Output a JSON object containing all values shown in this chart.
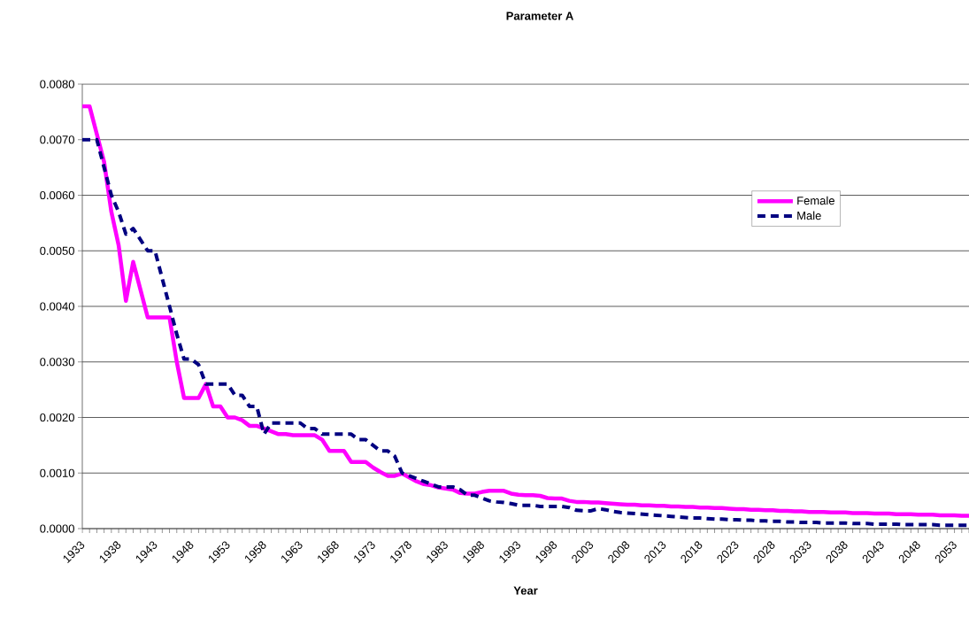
{
  "chart_data": {
    "type": "line",
    "title": "Parameter A",
    "xlabel": "Year",
    "categories": [
      "1933",
      null,
      null,
      null,
      null,
      "1938",
      null,
      null,
      null,
      null,
      "1943",
      null,
      null,
      null,
      null,
      "1948",
      null,
      null,
      null,
      null,
      "1953",
      null,
      null,
      null,
      null,
      "1958",
      null,
      null,
      null,
      null,
      "1963",
      null,
      null,
      null,
      null,
      "1968",
      null,
      null,
      null,
      null,
      "1973",
      null,
      null,
      null,
      null,
      "1978",
      null,
      null,
      null,
      null,
      "1983",
      null,
      null,
      null,
      null,
      "1988",
      null,
      null,
      null,
      null,
      "1993",
      null,
      null,
      null,
      null,
      "1998",
      null,
      null,
      null,
      null,
      "2003",
      null,
      null,
      null,
      null,
      "2008",
      null,
      null,
      null,
      null,
      "2013",
      null,
      null,
      null,
      null,
      "2018",
      null,
      null,
      null,
      null,
      "2023",
      null,
      null,
      null,
      null,
      "2028",
      null,
      null,
      null,
      null,
      "2033",
      null,
      null,
      null,
      null,
      "2038",
      null,
      null,
      null,
      null,
      "2043",
      null,
      null,
      null,
      null,
      "2048",
      null,
      null,
      null,
      null,
      "2053",
      null,
      null
    ],
    "series": [
      {
        "name": "Female",
        "color": "#ff00ff",
        "line_style": "solid",
        "values": [
          0.0076,
          0.0076,
          0.0071,
          0.0066,
          0.0057,
          0.0051,
          0.0041,
          0.0048,
          0.0043,
          0.0038,
          0.0038,
          0.0038,
          0.0038,
          0.003,
          0.00235,
          0.00235,
          0.00235,
          0.0026,
          0.0022,
          0.0022,
          0.002,
          0.002,
          0.00195,
          0.00185,
          0.00185,
          0.0018,
          0.00175,
          0.0017,
          0.0017,
          0.00168,
          0.00168,
          0.00168,
          0.00168,
          0.0016,
          0.0014,
          0.0014,
          0.0014,
          0.0012,
          0.0012,
          0.0012,
          0.0011,
          0.00102,
          0.00095,
          0.00095,
          0.00099,
          0.00092,
          0.00085,
          0.0008,
          0.00078,
          0.00074,
          0.00072,
          0.0007,
          0.00064,
          0.00063,
          0.00063,
          0.00066,
          0.00068,
          0.00068,
          0.00068,
          0.00063,
          0.00061,
          0.0006,
          0.0006,
          0.00059,
          0.00055,
          0.00054,
          0.00054,
          0.0005,
          0.00048,
          0.00048,
          0.00047,
          0.00047,
          0.00046,
          0.00045,
          0.00044,
          0.00043,
          0.00043,
          0.00042,
          0.00042,
          0.00041,
          0.00041,
          0.0004,
          0.0004,
          0.00039,
          0.00039,
          0.00038,
          0.00038,
          0.00037,
          0.00037,
          0.00036,
          0.00035,
          0.00035,
          0.00034,
          0.00034,
          0.00033,
          0.00033,
          0.00032,
          0.00032,
          0.00031,
          0.00031,
          0.0003,
          0.0003,
          0.0003,
          0.00029,
          0.00029,
          0.00029,
          0.00028,
          0.00028,
          0.00028,
          0.00027,
          0.00027,
          0.00027,
          0.00026,
          0.00026,
          0.00026,
          0.00025,
          0.00025,
          0.00025,
          0.00024,
          0.00024,
          0.00024,
          0.00023,
          0.00023
        ]
      },
      {
        "name": "Male",
        "color": "#000080",
        "line_style": "dashed",
        "values": [
          0.007,
          0.007,
          0.007,
          0.0065,
          0.006,
          0.0057,
          0.0053,
          0.0054,
          0.0052,
          0.005,
          0.005,
          0.0045,
          0.004,
          0.0035,
          0.00305,
          0.00305,
          0.00295,
          0.0026,
          0.0026,
          0.0026,
          0.0026,
          0.0024,
          0.0024,
          0.0022,
          0.0022,
          0.0017,
          0.0019,
          0.0019,
          0.0019,
          0.0019,
          0.0019,
          0.0018,
          0.0018,
          0.0017,
          0.0017,
          0.0017,
          0.0017,
          0.0017,
          0.0016,
          0.0016,
          0.0015,
          0.0014,
          0.0014,
          0.0013,
          0.001,
          0.00095,
          0.0009,
          0.00085,
          0.0008,
          0.00075,
          0.00075,
          0.00075,
          0.0007,
          0.0006,
          0.0006,
          0.00055,
          0.0005,
          0.00048,
          0.00047,
          0.00045,
          0.00042,
          0.00042,
          0.00042,
          0.0004,
          0.0004,
          0.0004,
          0.0004,
          0.00038,
          0.00033,
          0.00032,
          0.00032,
          0.00036,
          0.00034,
          0.00031,
          0.00029,
          0.00028,
          0.00027,
          0.00026,
          0.00025,
          0.00024,
          0.00023,
          0.00022,
          0.00021,
          0.0002,
          0.00019,
          0.00019,
          0.00018,
          0.00017,
          0.00017,
          0.00016,
          0.00016,
          0.00015,
          0.00015,
          0.00014,
          0.00014,
          0.00013,
          0.00013,
          0.00012,
          0.00012,
          0.00011,
          0.00011,
          0.00011,
          0.0001,
          0.0001,
          0.0001,
          0.0001,
          9e-05,
          9e-05,
          9e-05,
          8e-05,
          8e-05,
          8e-05,
          8e-05,
          7e-05,
          7e-05,
          7e-05,
          7e-05,
          7e-05,
          6e-05,
          6e-05,
          6e-05,
          6e-05,
          6e-05
        ]
      }
    ],
    "ylim": [
      0,
      0.008
    ],
    "yticks": [
      {
        "value": 0,
        "label": "0.0000"
      },
      {
        "value": 0.001,
        "label": "0.0010"
      },
      {
        "value": 0.002,
        "label": "0.0020"
      },
      {
        "value": 0.003,
        "label": "0.0030"
      },
      {
        "value": 0.004,
        "label": "0.0040"
      },
      {
        "value": 0.005,
        "label": "0.0050"
      },
      {
        "value": 0.006,
        "label": "0.0060"
      },
      {
        "value": 0.007,
        "label": "0.0070"
      },
      {
        "value": 0.008,
        "label": "0.0080"
      }
    ],
    "grid": "y",
    "legend": "right",
    "marker": "none"
  }
}
